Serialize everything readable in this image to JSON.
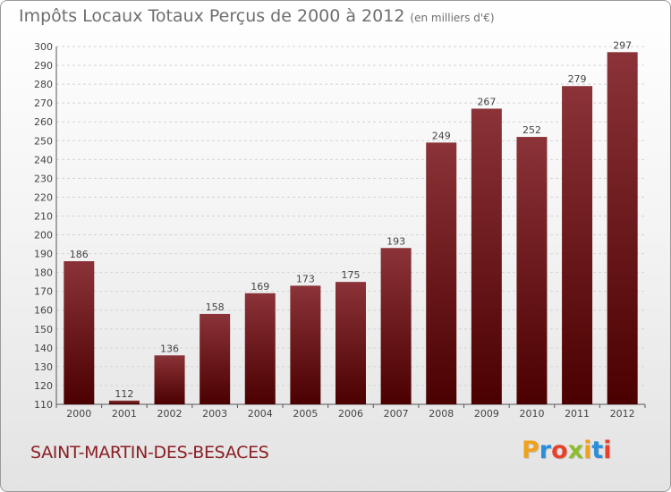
{
  "header": {
    "title": "Impôts Locaux Totaux Perçus de 2000 à 2012",
    "unit": "(en milliers d'€)"
  },
  "footer": {
    "town": "SAINT-MARTIN-DES-BESACES",
    "logo": {
      "letters": [
        "P",
        "r",
        "o",
        "x",
        "i",
        "t",
        "i"
      ],
      "colors": [
        "#f0a21d",
        "#2a8ed8",
        "#e7412d",
        "#8cbd2f",
        "#f0a21d",
        "#2a8ed8",
        "#e7412d"
      ]
    }
  },
  "colors": {
    "bar_top": "#8b3338",
    "bar_bottom": "#4b0000",
    "grid": "#d4d4d4",
    "text": "#444444"
  },
  "chart_data": {
    "type": "bar",
    "title": "Impôts Locaux Totaux Perçus de 2000 à 2012",
    "categories": [
      "2000",
      "2001",
      "2002",
      "2003",
      "2004",
      "2005",
      "2006",
      "2007",
      "2008",
      "2009",
      "2010",
      "2011",
      "2012"
    ],
    "values": [
      186,
      112,
      136,
      158,
      169,
      173,
      175,
      193,
      249,
      267,
      252,
      279,
      297
    ],
    "ylim": [
      110,
      300
    ],
    "yticks": [
      110,
      120,
      130,
      140,
      150,
      160,
      170,
      180,
      190,
      200,
      210,
      220,
      230,
      240,
      250,
      260,
      270,
      280,
      290,
      300
    ],
    "grid": true,
    "xlabel": "",
    "ylabel": ""
  }
}
